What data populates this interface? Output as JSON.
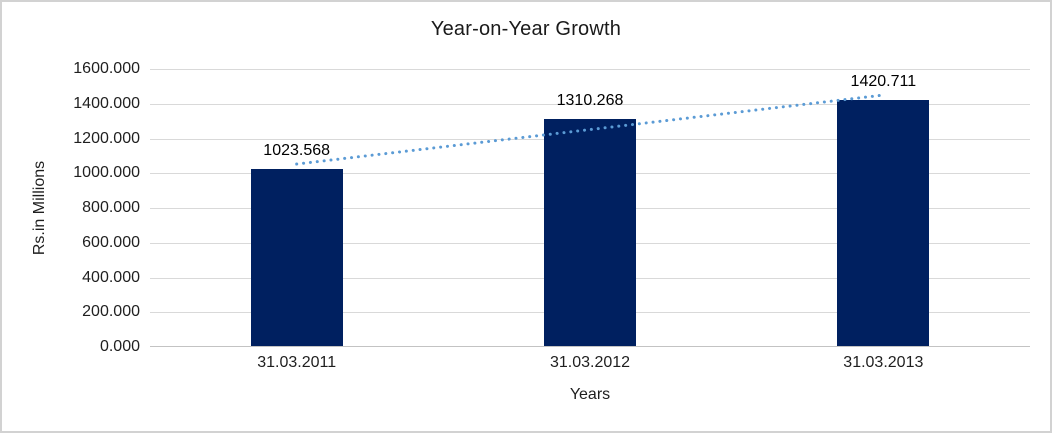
{
  "chart_data": {
    "type": "bar",
    "title": "Year-on-Year Growth",
    "xlabel": "Years",
    "ylabel": "Rs.in Millions",
    "categories": [
      "31.03.2011",
      "31.03.2012",
      "31.03.2013"
    ],
    "values": [
      1023.568,
      1310.268,
      1420.711
    ],
    "value_labels": [
      "1023.568",
      "1310.268",
      "1420.711"
    ],
    "ylim": [
      0,
      1600
    ],
    "ytick_step": 200,
    "ytick_labels": [
      "0.000",
      "200.000",
      "400.000",
      "600.000",
      "800.000",
      "1000.000",
      "1200.000",
      "1400.000",
      "1600.000"
    ],
    "grid": true,
    "legend": "none",
    "bar_color": "#002060",
    "trendline": {
      "type": "linear",
      "style": "dotted",
      "color": "#5b9bd5"
    },
    "gridline_color": "#d9d9d9",
    "text_color": "#1f1f1f"
  }
}
